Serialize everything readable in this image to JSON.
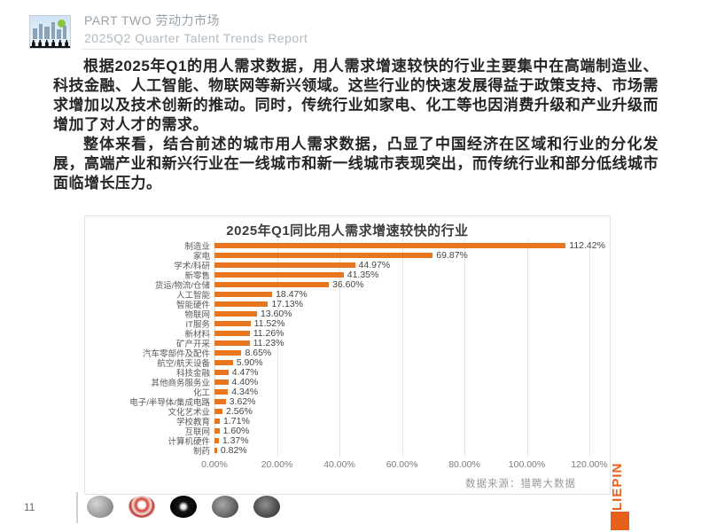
{
  "header": {
    "part_title": "PART TWO 劳动力市场",
    "subtitle": "2025Q2 Quarter Talent Trends Report"
  },
  "body": {
    "paragraph1": "根据2025年Q1的用人需求数据，用人需求增速较快的行业主要集中在高端制造业、科技金融、人工智能、物联网等新兴领域。这些行业的快速发展得益于政策支持、市场需求增加以及技术创新的推动。同时，传统行业如家电、化工等也因消费升级和产业升级而增加了对人才的需求。",
    "paragraph2": "整体来看，结合前述的城市用人需求数据，凸显了中国经济在区域和行业的分化发展，高端产业和新兴行业在一线城市和新一线城市表现突出，而传统行业和部分低线城市面临增长压力。"
  },
  "chart_data": {
    "type": "bar",
    "orientation": "horizontal",
    "title": "2025年Q1同比用人需求增速较快的行业",
    "categories": [
      "制造业",
      "家电",
      "学术/科研",
      "新零售",
      "货运/物流/仓储",
      "人工智能",
      "智能硬件",
      "物联网",
      "IT服务",
      "新材料",
      "矿产开采",
      "汽车零部件及配件",
      "航空/航天设备",
      "科技金融",
      "其他商务服务业",
      "化工",
      "电子/半导体/集成电路",
      "文化艺术业",
      "学校教育",
      "互联网",
      "计算机硬件",
      "制药"
    ],
    "values": [
      112.42,
      69.87,
      44.97,
      41.35,
      36.6,
      18.47,
      17.13,
      13.6,
      11.52,
      11.26,
      11.23,
      8.65,
      5.9,
      4.47,
      4.4,
      4.34,
      3.62,
      2.56,
      1.71,
      1.6,
      1.37,
      0.82
    ],
    "value_labels": [
      "112.42%",
      "69.87%",
      "44.97%",
      "41.35%",
      "36.60%",
      "18.47%",
      "17.13%",
      "13.60%",
      "11.52%",
      "11.26%",
      "11.23%",
      "8.65%",
      "5.90%",
      "4.47%",
      "4.40%",
      "4.34%",
      "3.62%",
      "2.56%",
      "1.71%",
      "1.60%",
      "1.37%",
      "0.82%"
    ],
    "x_ticks": [
      "0.00%",
      "20.00%",
      "40.00%",
      "60.00%",
      "80.00%",
      "100.00%",
      "120.00%"
    ],
    "xlim": [
      0,
      120
    ],
    "xlabel": "",
    "ylabel": "",
    "grid": true,
    "legend": false,
    "bar_color": "#E8761E"
  },
  "footer": {
    "source_note": "数据来源：猎聘大数据",
    "brand_logo_text": "LIEPIN",
    "brand_color": "#E8611C",
    "page_number": "11",
    "thumbnails": [
      "gray-sphere-thumbnail",
      "red-seal-logo-thumbnail",
      "black-round-logo-thumbnail",
      "dark-gray-logo-thumbnail",
      "dark-textured-logo-thumbnail"
    ]
  }
}
